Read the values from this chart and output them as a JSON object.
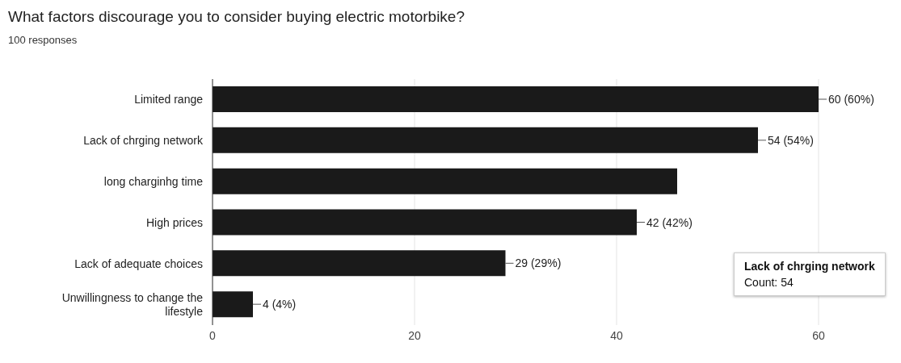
{
  "chart_data": {
    "type": "bar",
    "orientation": "horizontal",
    "title": "What factors discourage you to consider buying electric motorbike?",
    "subtitle": "100 responses",
    "categories": [
      "Limited range",
      "Lack of chrging network",
      "long charginhg time",
      "High prices",
      "Lack of adequate choices",
      "Unwillingness to change the lifestyle"
    ],
    "values": [
      60,
      54,
      46,
      42,
      29,
      4
    ],
    "value_labels": [
      "60 (60%)",
      "54 (54%)",
      null,
      "42 (42%)",
      "29 (29%)",
      "4 (4%)"
    ],
    "color": "#1a1a1a",
    "xlim": [
      0,
      60
    ],
    "xticks": [
      0,
      20,
      40,
      60
    ],
    "grid": "x",
    "annotations": [
      "Lack of chrging network",
      "Count: 54"
    ]
  }
}
